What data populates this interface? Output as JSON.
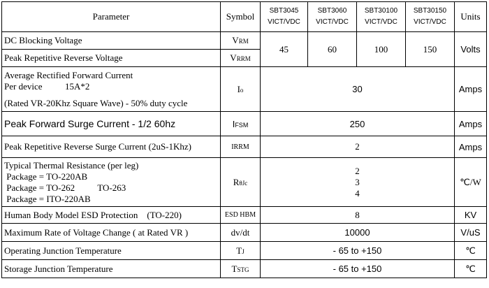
{
  "header": {
    "parameter": "Parameter",
    "symbol": "Symbol",
    "models": [
      [
        "SBT3045",
        "VICT/VDC"
      ],
      [
        "SBT3060",
        "VICT/VDC"
      ],
      [
        "SBT30100",
        "VICT/VDC"
      ],
      [
        "SBT30150",
        "VICT/VDC"
      ]
    ],
    "units": "Units"
  },
  "voltage": {
    "values": [
      45,
      60,
      100,
      150
    ],
    "unit": "Volts"
  },
  "rows": [
    {
      "parameter": "DC Blocking Voltage",
      "symbol": {
        "main": "V",
        "sub": "RM"
      }
    },
    {
      "parameter": "Peak Repetitive Reverse Voltage",
      "symbol": {
        "main": "V",
        "sub": "RRM"
      }
    },
    {
      "parameter": [
        "Average Rectified Forward Current",
        "Per device          15A*2",
        "(Rated VR-20Khz Square Wave) - 50% duty cycle"
      ],
      "symbol": {
        "main": "I",
        "sub": "o"
      },
      "value": 30,
      "unit": "Amps"
    },
    {
      "parameter": "Peak Forward Surge Current - 1/2 60hz",
      "symbol": {
        "main": "I",
        "sub": "FSM"
      },
      "value": 250,
      "unit": "Amps"
    },
    {
      "parameter": "Peak Repetitive Reverse Surge Current (2uS-1Khz)",
      "symbol": "IRRM",
      "value": 2,
      "unit": "Amps"
    },
    {
      "parameter": [
        "Typical Thermal Resistance (per leg)",
        " Package = TO-220AB",
        " Package = TO-262          TO-263",
        " Package = ITO-220AB"
      ],
      "symbol": {
        "main": "R",
        "sub": "θJc"
      },
      "value": [
        2,
        3,
        4
      ],
      "unit": "℃/W"
    },
    {
      "parameter": "Human Body Model ESD Protection    (TO-220)",
      "symbol": "ESD HBM",
      "value": 8,
      "unit": "KV"
    },
    {
      "parameter": "Maximum Rate of Voltage Change ( at Rated VR )",
      "symbol": "dv/dt",
      "value": 10000,
      "unit": "V/uS"
    },
    {
      "parameter": "Operating Junction Temperature",
      "symbol": {
        "main": "T",
        "sub": "J"
      },
      "value": "- 65 to +150",
      "unit": "℃"
    },
    {
      "parameter": "Storage Junction Temperature",
      "symbol": {
        "main": "T",
        "sub": "STG"
      },
      "value": "- 65 to +150",
      "unit": "℃"
    }
  ]
}
